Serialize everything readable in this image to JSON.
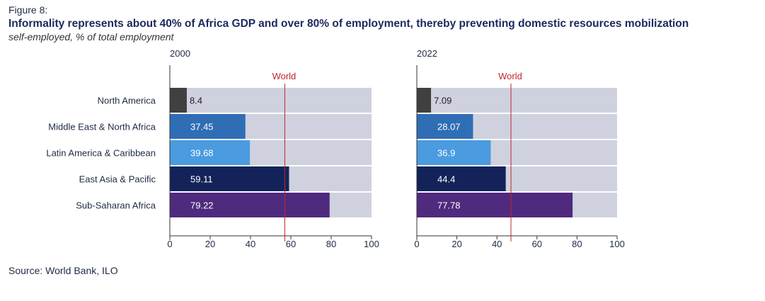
{
  "figure_label": "Figure 8:",
  "title": "Informality represents about 40% of Africa GDP and over 80% of employment, thereby preventing domestic resources mobilization",
  "subtitle": "self-employed, % of total employment",
  "source": "Source: World Bank, ILO",
  "colors": {
    "background_bar": "#cfd2de",
    "world_line": "#c0272d",
    "axis": "#333333",
    "North America": "#404040",
    "Middle East & North Africa": "#2f6db5",
    "Latin America & Caribbean": "#4a9be0",
    "East Asia & Pacific": "#13235a",
    "Sub-Saharan Africa": "#4f2a7e"
  },
  "chart_data": [
    {
      "type": "bar",
      "orientation": "horizontal",
      "title": "2000",
      "categories": [
        "North America",
        "Middle East & North Africa",
        "Latin America & Caribbean",
        "East Asia & Pacific",
        "Sub-Saharan Africa"
      ],
      "values": [
        8.4,
        37.45,
        39.68,
        59.11,
        79.22
      ],
      "value_labels": [
        "8.4",
        "37.45",
        "39.68",
        "59.11",
        "79.22"
      ],
      "xlim": [
        0,
        100
      ],
      "xticks": [
        0,
        20,
        40,
        60,
        80,
        100
      ],
      "reference_line": {
        "label": "World",
        "value": 57
      }
    },
    {
      "type": "bar",
      "orientation": "horizontal",
      "title": "2022",
      "categories": [
        "North America",
        "Middle East & North Africa",
        "Latin America & Caribbean",
        "East Asia & Pacific",
        "Sub-Saharan Africa"
      ],
      "values": [
        7.09,
        28.07,
        36.9,
        44.4,
        77.78
      ],
      "value_labels": [
        "7.09",
        "28.07",
        "36.9",
        "44.4",
        "77.78"
      ],
      "xlim": [
        0,
        100
      ],
      "xticks": [
        0,
        20,
        40,
        60,
        80,
        100
      ],
      "reference_line": {
        "label": "World",
        "value": 47
      }
    }
  ]
}
